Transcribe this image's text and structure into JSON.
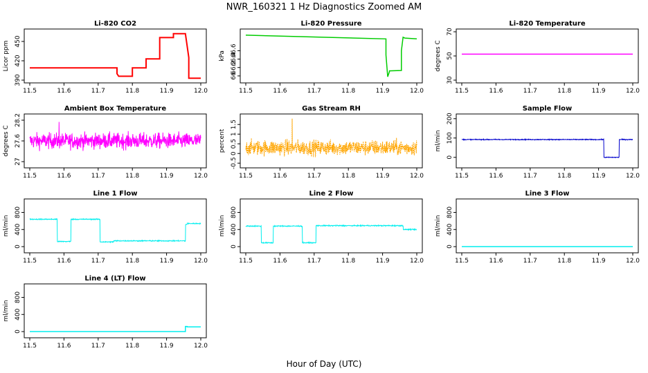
{
  "figure": {
    "title": "NWR_160321  1 Hz Diagnostics Zoomed AM",
    "xlabel": "Hour of Day (UTC)"
  },
  "chart_data": [
    {
      "id": "co2",
      "type": "line",
      "title": "Li-820 CO2",
      "ylabel": "Licor ppm",
      "color": "#ff0000",
      "xlim": [
        11.5,
        12.0
      ],
      "ylim": [
        390,
        465
      ],
      "yticks": [
        390,
        420,
        450
      ],
      "noise": 0,
      "series": [
        {
          "x": [
            11.5,
            11.755,
            11.755,
            11.76,
            11.8,
            11.8,
            11.84,
            11.84,
            11.88,
            11.88,
            11.92,
            11.92,
            11.955,
            11.965,
            11.965,
            12.0
          ],
          "y": [
            409,
            409,
            400,
            396,
            396,
            409,
            409,
            423,
            423,
            456,
            456,
            462,
            462,
            425,
            393,
            393
          ]
        }
      ]
    },
    {
      "id": "pressure",
      "type": "line",
      "title": "Li-820 Pressure",
      "ylabel": "kPa",
      "color": "#00cc00",
      "xlim": [
        11.5,
        12.0
      ],
      "ylim": [
        65.9,
        67.05
      ],
      "yticks": [
        66.0,
        66.2,
        66.4,
        66.6
      ],
      "noise": 0,
      "series": [
        {
          "x": [
            11.5,
            11.91,
            11.91,
            11.915,
            11.92,
            11.92,
            11.955,
            11.955,
            11.96,
            11.965,
            12.0
          ],
          "y": [
            66.97,
            66.88,
            66.5,
            65.98,
            66.1,
            66.12,
            66.13,
            66.6,
            66.92,
            66.9,
            66.88
          ]
        }
      ]
    },
    {
      "id": "temperature",
      "type": "line",
      "title": "Li-820 Temperature",
      "ylabel": "degrees C",
      "color": "#ff00ff",
      "xlim": [
        11.5,
        12.0
      ],
      "ylim": [
        30,
        70
      ],
      "yticks": [
        30,
        50,
        70
      ],
      "noise": 0,
      "series": [
        {
          "x": [
            11.5,
            12.0
          ],
          "y": [
            51.5,
            51.5
          ]
        }
      ]
    },
    {
      "id": "ambient",
      "type": "line",
      "title": "Ambient Box Temperature",
      "ylabel": "degrees C",
      "color": "#ff00ff",
      "xlim": [
        11.5,
        12.0
      ],
      "ylim": [
        26.9,
        28.3
      ],
      "yticks": [
        27.0,
        27.6,
        28.2
      ],
      "noise": 0.16,
      "series": [
        {
          "x": [
            11.5,
            12.0
          ],
          "y": [
            27.6,
            27.6
          ]
        }
      ]
    },
    {
      "id": "rh",
      "type": "line",
      "title": "Gas Stream RH",
      "ylabel": "percent",
      "color": "#ffa500",
      "xlim": [
        11.5,
        12.0
      ],
      "ylim": [
        -0.6,
        1.9
      ],
      "yticks": [
        -0.5,
        0.0,
        0.5,
        1.0,
        1.5
      ],
      "noise": 0.28,
      "series": [
        {
          "x": [
            11.5,
            12.0
          ],
          "y": [
            0.3,
            0.3
          ]
        }
      ]
    },
    {
      "id": "sample",
      "type": "line",
      "title": "Sample Flow",
      "ylabel": "ml/min",
      "color": "#0000cc",
      "xlim": [
        11.5,
        12.0
      ],
      "ylim": [
        -40,
        210
      ],
      "yticks": [
        0,
        100,
        200
      ],
      "noise": 1.5,
      "series": [
        {
          "x": [
            11.5,
            11.915,
            11.915,
            11.96,
            11.96,
            12.0
          ],
          "y": [
            92,
            92,
            0,
            0,
            92,
            92
          ]
        }
      ]
    },
    {
      "id": "line1",
      "type": "line",
      "title": "Line 1 Flow",
      "ylabel": "ml/min",
      "color": "#00eeee",
      "xlim": [
        11.5,
        12.0
      ],
      "ylim": [
        -80,
        1050
      ],
      "yticks": [
        0,
        400,
        800
      ],
      "noise": 8,
      "series": [
        {
          "x": [
            11.5,
            11.58,
            11.58,
            11.62,
            11.62,
            11.705,
            11.705,
            11.745,
            11.745,
            11.955,
            11.955,
            11.96,
            11.96,
            12.0
          ],
          "y": [
            640,
            640,
            120,
            120,
            640,
            640,
            110,
            110,
            135,
            135,
            520,
            520,
            540,
            540
          ]
        }
      ]
    },
    {
      "id": "line2",
      "type": "line",
      "title": "Line 2 Flow",
      "ylabel": "ml/min",
      "color": "#00eeee",
      "xlim": [
        11.5,
        12.0
      ],
      "ylim": [
        -80,
        1050
      ],
      "yticks": [
        0,
        400,
        800
      ],
      "noise": 8,
      "series": [
        {
          "x": [
            11.5,
            11.545,
            11.545,
            11.58,
            11.58,
            11.665,
            11.665,
            11.705,
            11.705,
            11.96,
            11.96,
            12.0
          ],
          "y": [
            480,
            480,
            90,
            90,
            480,
            480,
            90,
            90,
            490,
            490,
            400,
            400
          ]
        }
      ]
    },
    {
      "id": "line3",
      "type": "line",
      "title": "Line 3 Flow",
      "ylabel": "ml/min",
      "color": "#00eeee",
      "xlim": [
        11.5,
        12.0
      ],
      "ylim": [
        -80,
        1050
      ],
      "yticks": [
        0,
        400,
        800
      ],
      "noise": 0,
      "series": [
        {
          "x": [
            11.5,
            12.0
          ],
          "y": [
            0,
            0
          ]
        }
      ]
    },
    {
      "id": "line4",
      "type": "line",
      "title": "Line 4 (LT) Flow",
      "ylabel": "ml/min",
      "color": "#00eeee",
      "xlim": [
        11.5,
        12.0
      ],
      "ylim": [
        -80,
        1050
      ],
      "yticks": [
        0,
        400,
        800
      ],
      "noise": 0,
      "series": [
        {
          "x": [
            11.5,
            11.955,
            11.955,
            11.96,
            11.96,
            12.0
          ],
          "y": [
            0,
            0,
            120,
            120,
            110,
            110
          ]
        }
      ]
    }
  ],
  "xticks": [
    "11.5",
    "11.6",
    "11.7",
    "11.8",
    "11.9",
    "12.0"
  ]
}
